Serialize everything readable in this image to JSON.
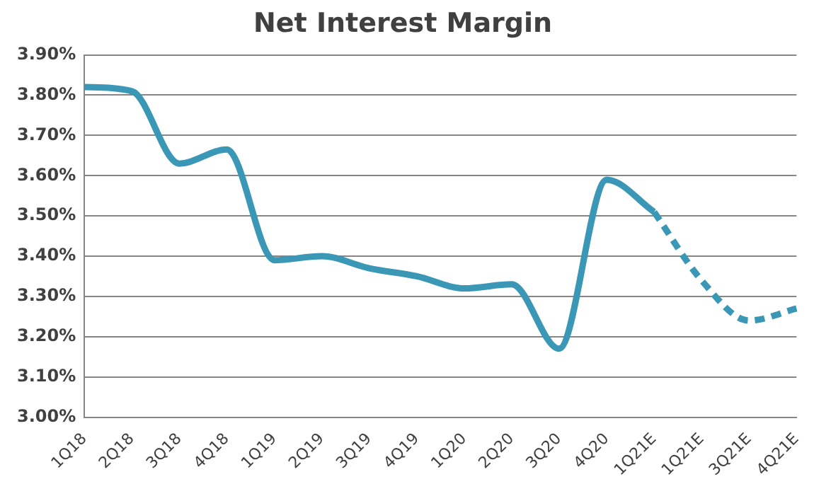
{
  "chart_data": {
    "type": "line",
    "title": "Net Interest Margin",
    "categories": [
      "1Q18",
      "2Q18",
      "3Q18",
      "4Q18",
      "1Q19",
      "2Q19",
      "3Q19",
      "4Q19",
      "1Q20",
      "2Q20",
      "3Q20",
      "4Q20",
      "1Q21E",
      "1Q21E",
      "3Q21E",
      "4Q21E"
    ],
    "series": [
      {
        "color": "#3a97b5",
        "line_style": "solid",
        "values": [
          3.82,
          3.81,
          3.63,
          3.665,
          3.39,
          3.4,
          3.37,
          3.35,
          3.32,
          3.33,
          3.17,
          3.59,
          3.51,
          null,
          null,
          null
        ]
      },
      {
        "color": "#3a97b5",
        "line_style": "dashed",
        "values": [
          null,
          null,
          null,
          null,
          null,
          null,
          null,
          null,
          null,
          null,
          null,
          null,
          3.51,
          3.34,
          3.24,
          3.27
        ]
      }
    ],
    "ylim": [
      3.0,
      3.9
    ],
    "yticks": [
      {
        "value": 3.0,
        "label": "3.00%"
      },
      {
        "value": 3.1,
        "label": "3.10%"
      },
      {
        "value": 3.2,
        "label": "3.20%"
      },
      {
        "value": 3.3,
        "label": "3.30%"
      },
      {
        "value": 3.4,
        "label": "3.40%"
      },
      {
        "value": 3.5,
        "label": "3.50%"
      },
      {
        "value": 3.6,
        "label": "3.60%"
      },
      {
        "value": 3.7,
        "label": "3.70%"
      },
      {
        "value": 3.8,
        "label": "3.80%"
      },
      {
        "value": 3.9,
        "label": "3.90%"
      }
    ],
    "grid": "y",
    "legend": false,
    "marker": "none"
  }
}
